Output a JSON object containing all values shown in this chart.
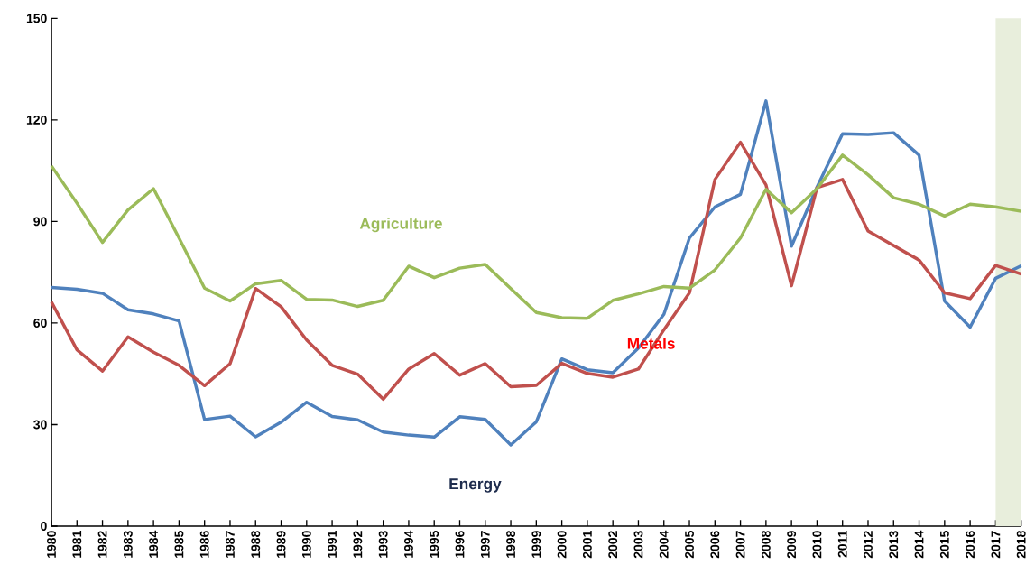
{
  "chart_data": {
    "type": "line",
    "x": [
      1980,
      1981,
      1982,
      1983,
      1984,
      1985,
      1986,
      1987,
      1988,
      1989,
      1990,
      1991,
      1992,
      1993,
      1994,
      1995,
      1996,
      1997,
      1998,
      1999,
      2000,
      2001,
      2002,
      2003,
      2004,
      2005,
      2006,
      2007,
      2008,
      2009,
      2010,
      2011,
      2012,
      2013,
      2014,
      2015,
      2016,
      2017,
      2018
    ],
    "series": [
      {
        "name": "Energy",
        "color": "#4f81bd",
        "values": [
          70.5,
          70,
          68.8,
          63.9,
          62.7,
          60.6,
          31.5,
          32.5,
          26.4,
          30.7,
          36.6,
          32.4,
          31.4,
          27.8,
          26.9,
          26.3,
          32.3,
          31.5,
          24,
          30.8,
          49.4,
          46.2,
          45.3,
          52.6,
          62.6,
          85.1,
          94.3,
          98,
          125.6,
          82.7,
          100.2,
          115.9,
          115.7,
          116.2,
          109.6,
          66.5,
          58.8,
          73.2,
          76.9
        ]
      },
      {
        "name": "Metals",
        "color": "#c0504d",
        "values": [
          66.2,
          52.1,
          45.8,
          55.9,
          51.4,
          47.5,
          41.5,
          48,
          70.2,
          64.8,
          55,
          47.5,
          44.9,
          37.5,
          46.4,
          51,
          44.6,
          48,
          41.2,
          41.6,
          48.1,
          45.1,
          44,
          46.4,
          58,
          68.9,
          102.4,
          113.4,
          100.8,
          71,
          100,
          102.4,
          87.2,
          82.9,
          78.6,
          68.9,
          67.2,
          77,
          74.5
        ]
      },
      {
        "name": "Agriculture",
        "color": "#9bbb59",
        "values": [
          106.4,
          95.4,
          83.8,
          93.4,
          99.7,
          85.1,
          70.3,
          66.5,
          71.6,
          72.6,
          67,
          66.8,
          64.9,
          66.7,
          76.8,
          73.4,
          76.2,
          77.3,
          70.2,
          63.1,
          61.6,
          61.4,
          66.7,
          68.6,
          70.8,
          70.3,
          75.7,
          85.1,
          99.5,
          92.6,
          99.7,
          109.6,
          103.8,
          97,
          95.1,
          91.6,
          95.1,
          94.3,
          93
        ]
      }
    ],
    "xlim": [
      1980,
      2018
    ],
    "xticks": [
      1980,
      1981,
      1982,
      1983,
      1984,
      1985,
      1986,
      1987,
      1988,
      1989,
      1990,
      1991,
      1992,
      1993,
      1994,
      1995,
      1996,
      1997,
      1998,
      1999,
      2000,
      2001,
      2002,
      2003,
      2004,
      2005,
      2006,
      2007,
      2008,
      2009,
      2010,
      2011,
      2012,
      2013,
      2014,
      2015,
      2016,
      2017,
      2018
    ],
    "ylim": [
      0,
      150
    ],
    "yticks": [
      0,
      30,
      60,
      90,
      120,
      150
    ],
    "bands": [
      {
        "axis": "x",
        "from": 2017,
        "to": 2018,
        "color": "#e8eedc"
      }
    ],
    "grid": false,
    "legend": false,
    "marker": "none",
    "line_style": "solid"
  }
}
